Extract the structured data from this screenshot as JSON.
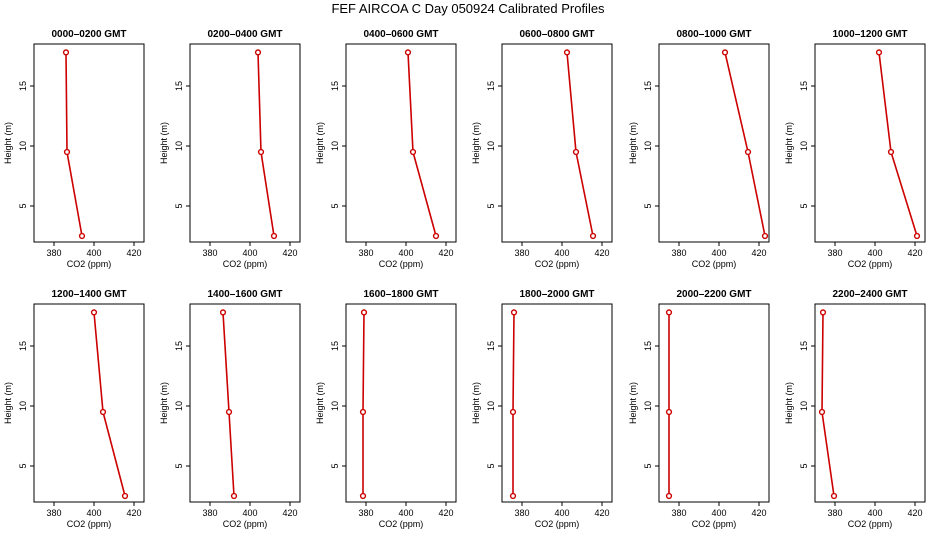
{
  "chart_data": {
    "type": "line",
    "title": "FEF AIRCOA C  Day 050924  Calibrated Profiles",
    "xlabel": "CO2 (ppm)",
    "ylabel": "Height (m)",
    "xlim": [
      370,
      425
    ],
    "ylim": [
      2,
      18.5
    ],
    "xticks": [
      380,
      400,
      420
    ],
    "yticks": [
      5,
      10,
      15
    ],
    "heights": [
      17.8,
      9.5,
      2.5
    ],
    "series_color": "#cc0000",
    "panels": [
      {
        "name": "0000–0200 GMT",
        "values": [
          386,
          386.5,
          394
        ]
      },
      {
        "name": "0200–0400 GMT",
        "values": [
          404,
          405.5,
          412
        ]
      },
      {
        "name": "0400–0600 GMT",
        "values": [
          401,
          403.5,
          415
        ]
      },
      {
        "name": "0600–0800 GMT",
        "values": [
          402.5,
          407,
          415.5
        ]
      },
      {
        "name": "0800–1000 GMT",
        "values": [
          403,
          414.5,
          423
        ]
      },
      {
        "name": "1000–1200 GMT",
        "values": [
          402,
          408,
          421
        ]
      },
      {
        "name": "1200–1400 GMT",
        "values": [
          400,
          404.5,
          415.5
        ]
      },
      {
        "name": "1400–1600 GMT",
        "values": [
          386.5,
          389.5,
          392
        ]
      },
      {
        "name": "1600–1800 GMT",
        "values": [
          379,
          378.5,
          378.5
        ]
      },
      {
        "name": "1800–2000 GMT",
        "values": [
          376,
          375.5,
          375.5
        ]
      },
      {
        "name": "2000–2200 GMT",
        "values": [
          375,
          375,
          375
        ]
      },
      {
        "name": "2200–2400 GMT",
        "values": [
          374,
          373.5,
          379.5
        ]
      }
    ]
  }
}
